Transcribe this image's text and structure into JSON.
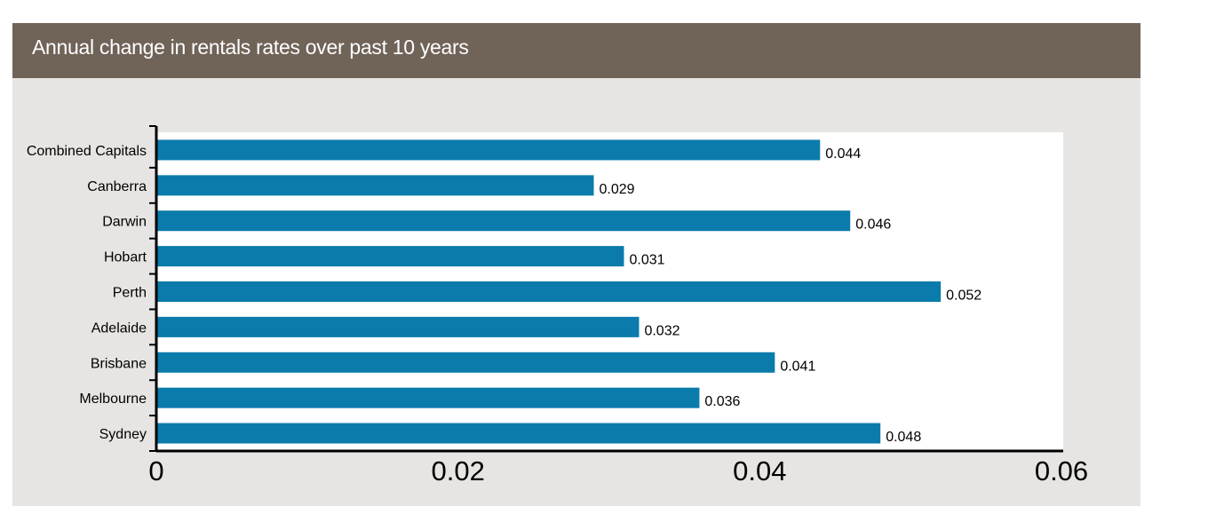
{
  "header": {
    "title": "Annual change in rentals rates over past 10 years"
  },
  "chart_data": {
    "type": "bar",
    "orientation": "horizontal",
    "title": "Annual change in rentals rates over past 10 years",
    "xlabel": "",
    "ylabel": "",
    "categories": [
      "Combined Capitals",
      "Canberra",
      "Darwin",
      "Hobart",
      "Perth",
      "Adelaide",
      "Brisbane",
      "Melbourne",
      "Sydney"
    ],
    "values": [
      0.044,
      0.029,
      0.046,
      0.031,
      0.052,
      0.032,
      0.041,
      0.036,
      0.048
    ],
    "value_labels": [
      "0.044",
      "0.029",
      "0.046",
      "0.031",
      "0.052",
      "0.032",
      "0.041",
      "0.036",
      "0.048"
    ],
    "xlim": [
      0,
      0.06
    ],
    "x_ticks": [
      0,
      0.02,
      0.04,
      0.06
    ],
    "x_tick_labels": [
      "0",
      "0.02",
      "0.04",
      "0.06"
    ],
    "grid": false,
    "legend": "none",
    "colors": {
      "bar": "#0a7bab",
      "header": "#706358",
      "panel": "#e7e5e3",
      "plot_area": "#ffffff",
      "axis": "#000000"
    }
  }
}
